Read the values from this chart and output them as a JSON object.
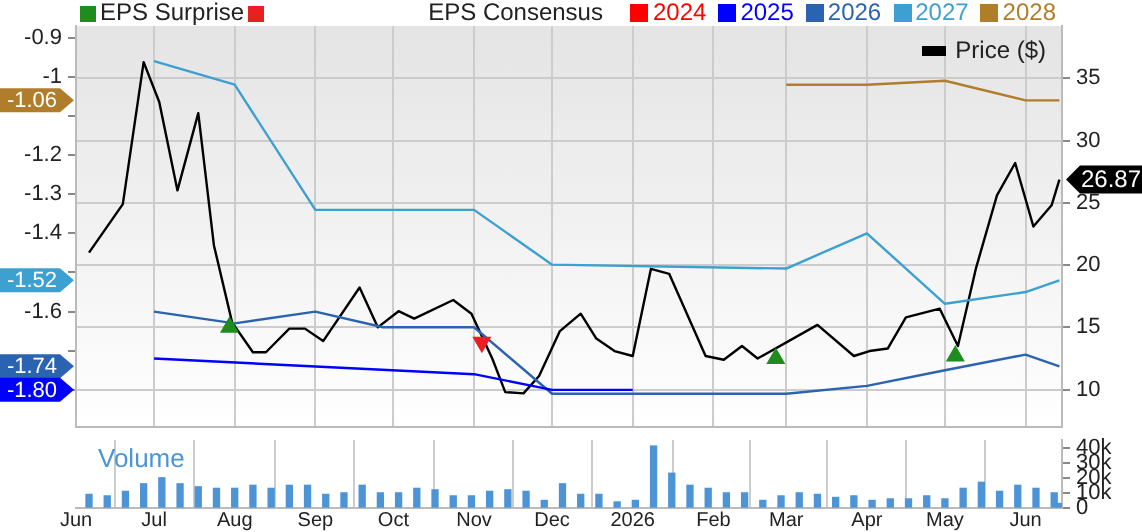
{
  "chart_data": [
    {
      "type": "line",
      "legend_title": "EPS Consensus",
      "legend": "top right",
      "grid": true,
      "tick_labels": "y",
      "xlim": [
        "2025-06-01",
        "2026-06-15"
      ],
      "xticks": [
        {
          "value": "2025-06-01",
          "label": null
        },
        {
          "value": "2025-07-01",
          "label": null
        },
        {
          "value": "2025-08-01",
          "label": null
        },
        {
          "value": "2025-09-01",
          "label": null
        },
        {
          "value": "2025-10-01",
          "label": null
        },
        {
          "value": "2025-11-01",
          "label": null
        },
        {
          "value": "2025-12-01",
          "label": null
        },
        {
          "value": "2026-01-01",
          "label": null
        },
        {
          "value": "2026-02-01",
          "label": null
        },
        {
          "value": "2026-03-01",
          "label": null
        },
        {
          "value": "2026-04-01",
          "label": null
        },
        {
          "value": "2026-05-01",
          "label": null
        },
        {
          "value": "2026-06-01",
          "label": null
        }
      ],
      "ylim": [
        -1.895,
        -0.87
      ],
      "yticks": [
        -0.9,
        -1,
        {
          "value": -1.1,
          "label": null
        },
        -1.2,
        -1.3,
        -1.4,
        {
          "value": -1.5,
          "label": null
        },
        -1.6,
        {
          "value": -1.7,
          "label": null
        },
        {
          "value": -1.8,
          "label": null
        }
      ],
      "y2lim": [
        7,
        39.2
      ],
      "y2ticks": [
        10,
        15,
        20,
        25,
        30,
        35
      ],
      "annotations": [
        "-1.06",
        "-1.52",
        "-1.74",
        "-1.80"
      ],
      "series": [
        {
          "name": "2024",
          "color": "#ff0000"
        },
        {
          "name": "2025",
          "color": "#0000ff",
          "x": [
            "2025-07-01",
            "2025-11-01",
            "2025-12-01",
            "2026-01-01"
          ],
          "values": [
            -1.72,
            -1.76,
            -1.8,
            -1.8
          ]
        },
        {
          "name": "2026",
          "color": "#2a63b0",
          "x": [
            "2025-07-01",
            "2025-08-01",
            "2025-09-01",
            "2025-09-27",
            "2025-11-01",
            "2025-12-01",
            "2026-03-01",
            "2026-04-01",
            "2026-05-01",
            "2026-06-01",
            "2026-06-14"
          ],
          "values": [
            -1.6,
            -1.63,
            -1.6,
            -1.64,
            -1.64,
            -1.81,
            -1.81,
            -1.79,
            -1.75,
            -1.71,
            -1.74
          ]
        },
        {
          "name": "2027",
          "color": "#3ca0d0",
          "x": [
            "2025-07-01",
            "2025-08-01",
            "2025-09-01",
            "2025-11-01",
            "2025-12-01",
            "2026-03-01",
            "2026-04-01",
            "2026-05-01",
            "2026-06-01",
            "2026-06-14"
          ],
          "values": [
            -0.96,
            -1.02,
            -1.34,
            -1.34,
            -1.48,
            -1.49,
            -1.4,
            -1.58,
            -1.55,
            -1.52
          ]
        },
        {
          "name": "2028",
          "color": "#b07d2b",
          "x": [
            "2026-03-01",
            "2026-04-01",
            "2026-05-01",
            "2026-06-01",
            "2026-06-14"
          ],
          "values": [
            -1.02,
            -1.02,
            -1.01,
            -1.06,
            -1.06
          ]
        },
        {
          "name": "Price ($)",
          "color": "#000000",
          "axis": "y2",
          "x": [
            "2025-06-06",
            "2025-06-19",
            "2025-06-27",
            "2025-07-03",
            "2025-07-10",
            "2025-07-18",
            "2025-07-24",
            "2025-07-31",
            "2025-08-08",
            "2025-08-13",
            "2025-08-22",
            "2025-08-28",
            "2025-09-04",
            "2025-09-18",
            "2025-09-25",
            "2025-10-03",
            "2025-10-09",
            "2025-10-24",
            "2025-10-31",
            "2025-11-08",
            "2025-11-13",
            "2025-11-20",
            "2025-11-26",
            "2025-12-04",
            "2025-12-12",
            "2025-12-18",
            "2025-12-25",
            "2026-01-01",
            "2026-01-08",
            "2026-01-15",
            "2026-01-29",
            "2026-02-05",
            "2026-02-12",
            "2026-02-18",
            "2026-03-13",
            "2026-03-27",
            "2026-04-02",
            "2026-04-09",
            "2026-04-16",
            "2026-04-29",
            "2026-05-06",
            "2026-05-13",
            "2026-05-21",
            "2026-05-28",
            "2026-06-04",
            "2026-06-11",
            "2026-06-14"
          ],
          "values": [
            21,
            24.9,
            36.3,
            33.1,
            26,
            32.2,
            21.6,
            15.4,
            13,
            13,
            14.9,
            14.9,
            13.9,
            18.2,
            15,
            16.3,
            15.7,
            17.2,
            16.1,
            12.5,
            9.8,
            9.7,
            11.1,
            14.7,
            16.1,
            14.1,
            13.1,
            12.7,
            19.7,
            19.3,
            12.7,
            12.4,
            13.5,
            12.5,
            15.2,
            12.7,
            13.1,
            13.3,
            15.8,
            16.5,
            13.5,
            19.8,
            25.6,
            28.2,
            23.1,
            24.8,
            26.87
          ],
          "value_labels": [
            null,
            null,
            null,
            null,
            null,
            null,
            null,
            null,
            null,
            null,
            null,
            null,
            null,
            null,
            null,
            null,
            null,
            null,
            null,
            null,
            null,
            null,
            null,
            null,
            null,
            null,
            null,
            null,
            null,
            null,
            null,
            null,
            null,
            null,
            null,
            null,
            null,
            null,
            null,
            null,
            null,
            null,
            null,
            null,
            null,
            null,
            "26.87"
          ]
        },
        {
          "name": "EPS Surprise",
          "type": "scatter",
          "axis": "y2",
          "color": "#1e8c1e",
          "marker": "triangle",
          "x": [
            "2025-07-30",
            "2026-02-25",
            "2026-05-05"
          ],
          "values": [
            15,
            12.5,
            12.7
          ]
        },
        {
          "type": "scatter",
          "axis": "y2",
          "color": "#e82020",
          "marker": "triangle",
          "x": [
            "2025-11-04"
          ],
          "values": [
            13.8
          ]
        }
      ]
    },
    {
      "type": "bar",
      "title": "Volume",
      "grid": "x",
      "xlim": [
        "2025-06-01",
        "2026-06-15"
      ],
      "xticks": [
        {
          "value": "2025-06-01",
          "label": "Jun"
        },
        {
          "value": "2025-07-01",
          "label": "Jul"
        },
        {
          "value": "2025-08-01",
          "label": "Aug"
        },
        {
          "value": "2025-09-01",
          "label": "Sep"
        },
        {
          "value": "2025-10-01",
          "label": "Oct"
        },
        {
          "value": "2025-11-01",
          "label": "Nov"
        },
        {
          "value": "2025-12-01",
          "label": "Dec"
        },
        {
          "value": "2026-01-01",
          "label": "2026"
        },
        {
          "value": "2026-02-01",
          "label": "Feb"
        },
        {
          "value": "2026-03-01",
          "label": "Mar"
        },
        {
          "value": "2026-04-01",
          "label": "Apr"
        },
        {
          "value": "2026-05-01",
          "label": "May"
        },
        {
          "value": "2026-06-01",
          "label": "Jun"
        }
      ],
      "y2lim": [
        0,
        45000
      ],
      "y2ticks": [
        0,
        {
          "value": 10000,
          "label": "10k"
        },
        {
          "value": 20000,
          "label": "20k"
        },
        {
          "value": 30000,
          "label": "30k"
        },
        {
          "value": 40000,
          "label": "40k"
        }
      ],
      "series": [
        {
          "axis": "y2",
          "color": "#4d94d6",
          "x": [
            "2025-06-06",
            "2025-06-13",
            "2025-06-20",
            "2025-06-27",
            "2025-07-04",
            "2025-07-11",
            "2025-07-18",
            "2025-07-25",
            "2025-08-01",
            "2025-08-08",
            "2025-08-15",
            "2025-08-22",
            "2025-08-29",
            "2025-09-05",
            "2025-09-12",
            "2025-09-19",
            "2025-09-26",
            "2025-10-03",
            "2025-10-10",
            "2025-10-17",
            "2025-10-24",
            "2025-10-31",
            "2025-11-07",
            "2025-11-14",
            "2025-11-21",
            "2025-11-28",
            "2025-12-05",
            "2025-12-12",
            "2025-12-19",
            "2025-12-26",
            "2026-01-02",
            "2026-01-09",
            "2026-01-16",
            "2026-01-23",
            "2026-01-30",
            "2026-02-06",
            "2026-02-13",
            "2026-02-20",
            "2026-02-27",
            "2026-03-06",
            "2026-03-13",
            "2026-03-20",
            "2026-03-27",
            "2026-04-03",
            "2026-04-10",
            "2026-04-17",
            "2026-04-24",
            "2026-05-01",
            "2026-05-08",
            "2026-05-15",
            "2026-05-22",
            "2026-05-29",
            "2026-06-05",
            "2026-06-12",
            "2026-06-14"
          ],
          "values": [
            9000,
            8000,
            11000,
            16000,
            20000,
            16000,
            14000,
            13000,
            13000,
            15000,
            13000,
            15000,
            15000,
            9000,
            10000,
            15000,
            10000,
            10000,
            13000,
            12000,
            8000,
            8000,
            11000,
            12000,
            11000,
            5000,
            16000,
            9000,
            9000,
            4000,
            5000,
            41000,
            23000,
            15000,
            13000,
            10000,
            10000,
            5000,
            8000,
            10000,
            9000,
            7000,
            8000,
            5000,
            6000,
            6000,
            8000,
            6000,
            13000,
            17000,
            11000,
            15000,
            13000,
            10000,
            3000
          ]
        }
      ]
    }
  ]
}
